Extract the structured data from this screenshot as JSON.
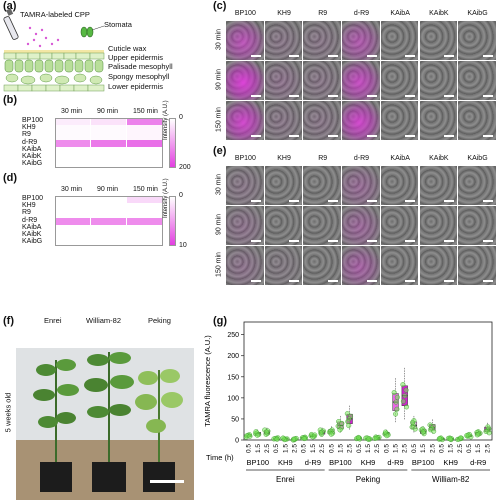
{
  "panel_a": {
    "label": "(a)",
    "title": "TAMRA-labeled CPP",
    "stomata": "Stomata",
    "layers": [
      "Cuticle wax",
      "Upper epidermis",
      "Palisade mesophyll",
      "Spongy mesophyll",
      "Lower epidermis"
    ]
  },
  "panel_b": {
    "label": "(b)",
    "columns": [
      "30 min",
      "90 min",
      "150 min"
    ],
    "rows": [
      "BP100",
      "KH9",
      "R9",
      "d-R9",
      "KAibA",
      "KAibK",
      "KAibG"
    ],
    "intensity": [
      [
        20,
        30,
        130
      ],
      [
        5,
        5,
        10
      ],
      [
        5,
        5,
        10
      ],
      [
        120,
        140,
        150
      ],
      [
        0,
        0,
        0
      ],
      [
        0,
        0,
        0
      ],
      [
        0,
        0,
        0
      ]
    ],
    "scale_min": "0",
    "scale_max": "200",
    "scale_label": "Intensity (A.U.)",
    "accent": "#e23fe0"
  },
  "panel_d": {
    "label": "(d)",
    "columns": [
      "30 min",
      "90 min",
      "150 min"
    ],
    "rows": [
      "BP100",
      "KH9",
      "R9",
      "d-R9",
      "KAibA",
      "KAibK",
      "KAibG"
    ],
    "intensity": [
      [
        0,
        0,
        2
      ],
      [
        0,
        0,
        0
      ],
      [
        0,
        0,
        0
      ],
      [
        6,
        6,
        6
      ],
      [
        0,
        0,
        0
      ],
      [
        0,
        0,
        0
      ],
      [
        0,
        0,
        0
      ]
    ],
    "scale_min": "0",
    "scale_max": "10",
    "scale_label": "Intensity (A.U.)"
  },
  "panel_c": {
    "label": "(c)",
    "columns": [
      "BP100",
      "KH9",
      "R9",
      "d-R9",
      "KAibA",
      "KAibK",
      "KAibG"
    ],
    "rows": [
      "30 min",
      "90 min",
      "150 min"
    ],
    "magenta": [
      [
        0.6,
        0.1,
        0.1,
        0.5,
        0,
        0,
        0
      ],
      [
        0.9,
        0.15,
        0.1,
        0.7,
        0,
        0,
        0
      ],
      [
        0.8,
        0.1,
        0.1,
        0.8,
        0,
        0,
        0
      ]
    ]
  },
  "panel_e": {
    "label": "(e)",
    "columns": [
      "BP100",
      "KH9",
      "R9",
      "d-R9",
      "KAibA",
      "KAibK",
      "KAibG"
    ],
    "rows": [
      "30 min",
      "90 min",
      "150 min"
    ],
    "magenta": [
      [
        0.1,
        0,
        0,
        0.25,
        0,
        0,
        0
      ],
      [
        0.15,
        0,
        0,
        0.3,
        0,
        0,
        0
      ],
      [
        0.15,
        0.05,
        0,
        0.4,
        0,
        0,
        0
      ]
    ]
  },
  "panel_f": {
    "label": "(f)",
    "cultivars": [
      "Enrei",
      "William-82",
      "Peking"
    ],
    "age": "5 weeks old"
  },
  "panel_g": {
    "label": "(g)",
    "ylabel": "TAMRA fluorescence (A.U.)",
    "time_label": "Time (h)"
  },
  "chart_data": {
    "type": "box",
    "ylabel": "TAMRA fluorescence (A.U.)",
    "xlabel": "Time (h)",
    "ylim": [
      0,
      280
    ],
    "yticks": [
      0,
      50,
      100,
      150,
      200,
      250
    ],
    "x_time_ticks": [
      "0.5",
      "1.5",
      "2.5"
    ],
    "groups": [
      {
        "cultivar": "Enrei",
        "peptides": [
          {
            "name": "BP100",
            "medians": [
              10,
              15,
              18
            ]
          },
          {
            "name": "KH9",
            "medians": [
              3,
              3,
              2
            ]
          },
          {
            "name": "d-R9",
            "medians": [
              5,
              10,
              18
            ]
          }
        ]
      },
      {
        "cultivar": "Peking",
        "peptides": [
          {
            "name": "BP100",
            "medians": [
              20,
              35,
              50
            ]
          },
          {
            "name": "KH9",
            "medians": [
              4,
              3,
              5
            ]
          },
          {
            "name": "d-R9",
            "medians": [
              15,
              90,
              105
            ]
          }
        ]
      },
      {
        "cultivar": "William-82",
        "peptides": [
          {
            "name": "BP100",
            "medians": [
              35,
              20,
              30
            ]
          },
          {
            "name": "KH9",
            "medians": [
              3,
              3,
              3
            ]
          },
          {
            "name": "d-R9",
            "medians": [
              10,
              15,
              25
            ]
          }
        ]
      }
    ]
  }
}
